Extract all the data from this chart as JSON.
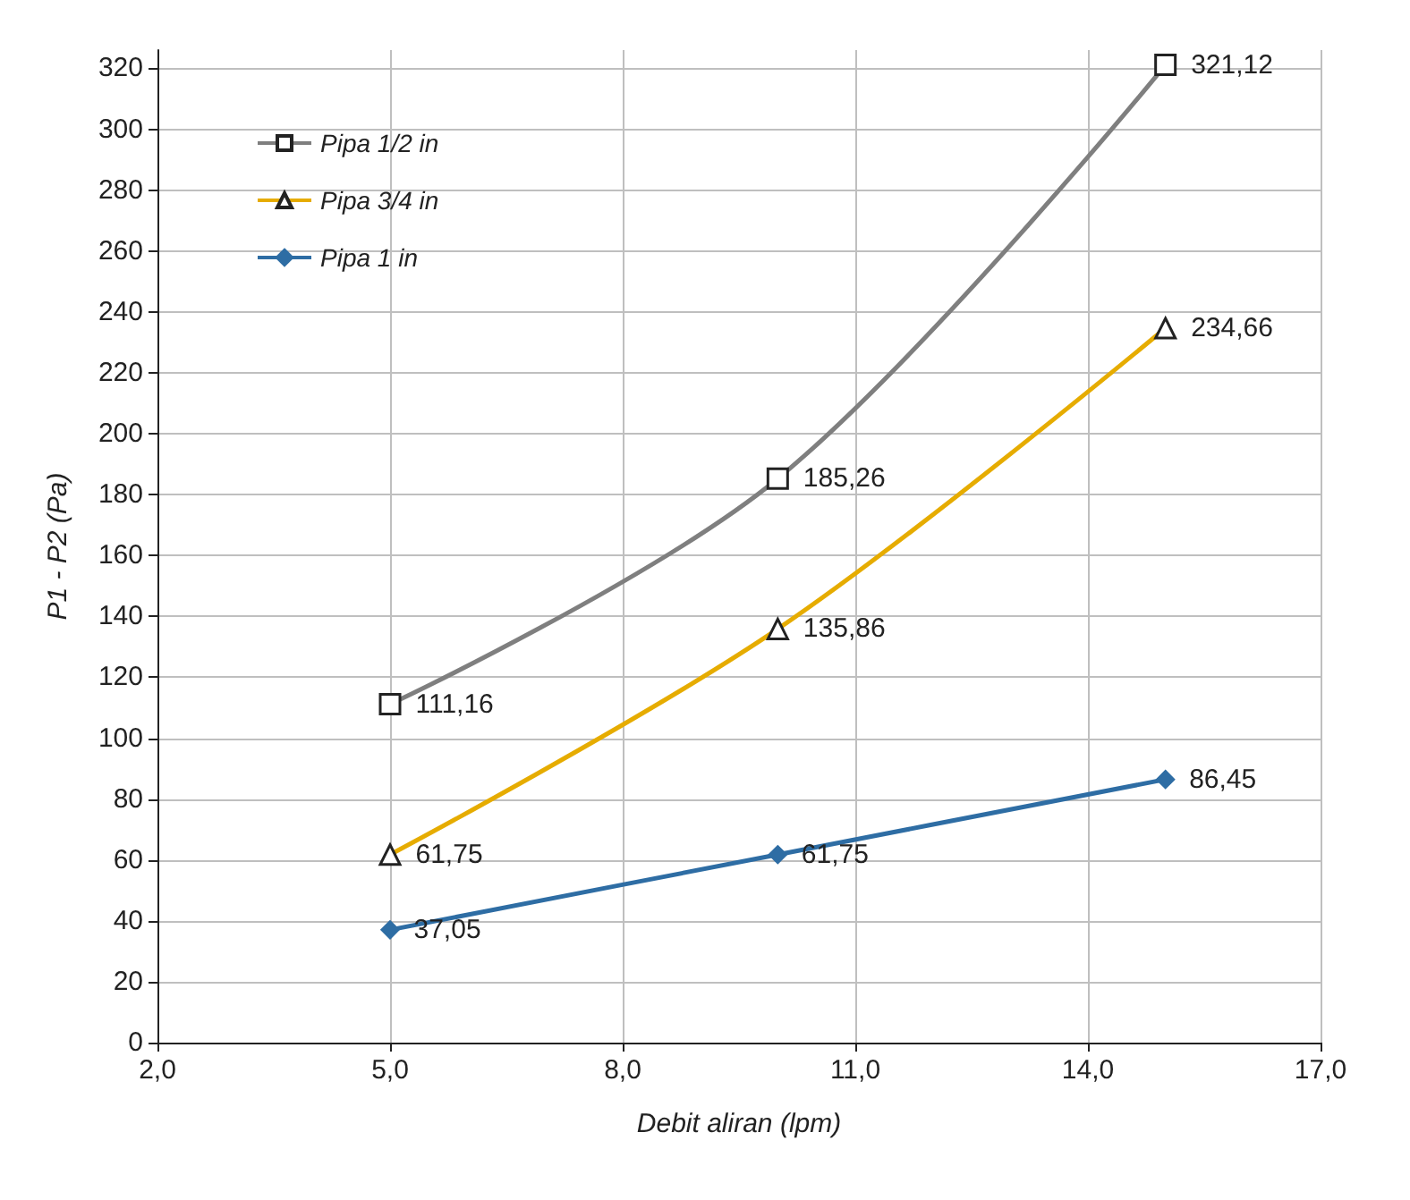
{
  "chart_data": {
    "type": "line",
    "xlabel": "Debit aliran (lpm)",
    "ylabel": "P1 - P2 (Pa)",
    "x": [
      5,
      10,
      15
    ],
    "series": [
      {
        "name": "Pipa 1/2 in",
        "color": "#7f7f7f",
        "marker": "square",
        "values": [
          111.16,
          185.26,
          321.12
        ],
        "value_labels": [
          "111,16",
          "185,26",
          "321,12"
        ]
      },
      {
        "name": "Pipa 3/4 in",
        "color": "#e6ac00",
        "marker": "triangle",
        "values": [
          61.75,
          135.86,
          234.66
        ],
        "value_labels": [
          "61,75",
          "135,86",
          "234,66"
        ]
      },
      {
        "name": "Pipa 1 in",
        "color": "#2e6da4",
        "marker": "diamond",
        "values": [
          37.05,
          61.75,
          86.45
        ],
        "value_labels": [
          "37,05",
          "61,75",
          "86,45"
        ]
      }
    ],
    "xlim": [
      2,
      17
    ],
    "xticks": [
      {
        "value": 2,
        "label": "2,0"
      },
      {
        "value": 5,
        "label": "5,0"
      },
      {
        "value": 8,
        "label": "8,0"
      },
      {
        "value": 11,
        "label": "11,0"
      },
      {
        "value": 14,
        "label": "14,0"
      },
      {
        "value": 17,
        "label": "17,0"
      }
    ],
    "ylim": [
      0,
      326
    ],
    "yticks": [
      0,
      20,
      40,
      60,
      80,
      100,
      120,
      140,
      160,
      180,
      200,
      220,
      240,
      260,
      280,
      300,
      320
    ],
    "grid": true,
    "legend": "top left",
    "line_style": "solid"
  }
}
